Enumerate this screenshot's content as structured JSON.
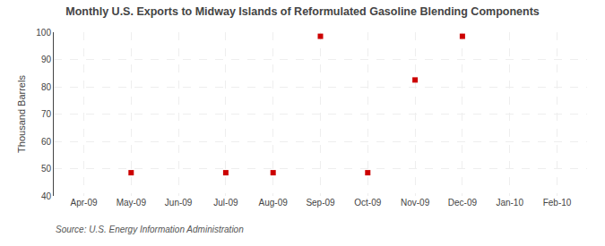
{
  "chart_data": {
    "type": "scatter",
    "title": "Monthly U.S. Exports to Midway Islands of Reformulated Gasoline Blending Components",
    "ylabel": "Thousand Barrels",
    "annotations": [
      "Source: U.S. Energy Information Administration"
    ],
    "categories": [
      "Apr-09",
      "May-09",
      "Jun-09",
      "Jul-09",
      "Aug-09",
      "Sep-09",
      "Oct-09",
      "Nov-09",
      "Dec-09",
      "Jan-10",
      "Feb-10"
    ],
    "values": [
      null,
      48.5,
      null,
      48.5,
      48.5,
      98.5,
      48.5,
      82.5,
      98.5,
      null,
      null
    ],
    "color": "#cc0000",
    "marker": "square",
    "ylim": [
      40,
      100
    ],
    "yticks": [
      40,
      50,
      60,
      70,
      80,
      90,
      100
    ],
    "grid": true
  }
}
